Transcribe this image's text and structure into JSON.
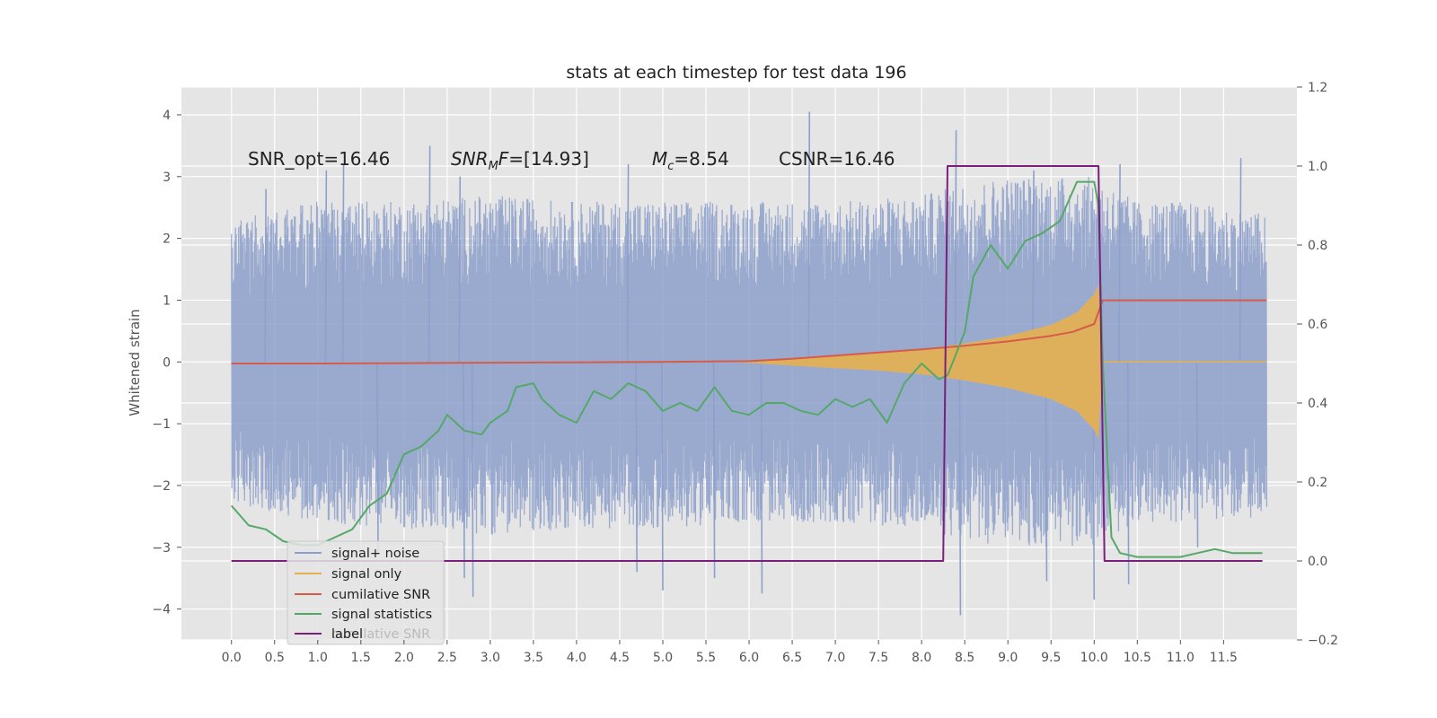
{
  "chart_data": {
    "type": "line",
    "title": "stats at each timestep for test data 196",
    "xlabel": "",
    "ylabel": "Whitened strain",
    "y2label": "",
    "xlim": [
      -0.58,
      12.35
    ],
    "ylim": [
      -4.5,
      4.45
    ],
    "y2lim": [
      -0.2,
      1.2
    ],
    "x_ticks": [
      0.0,
      0.5,
      1.0,
      1.5,
      2.0,
      2.5,
      3.0,
      3.5,
      4.0,
      4.5,
      5.0,
      5.5,
      6.0,
      6.5,
      7.0,
      7.5,
      8.0,
      8.5,
      9.0,
      9.5,
      10.0,
      10.5,
      11.0,
      11.5
    ],
    "x_tick_labels": [
      "0.0",
      "0.5",
      "1.0",
      "1.5",
      "2.0",
      "2.5",
      "3.0",
      "3.5",
      "4.0",
      "4.5",
      "5.0",
      "5.5",
      "6.0",
      "6.5",
      "7.0",
      "7.5",
      "8.0",
      "8.5",
      "9.0",
      "9.5",
      "10.0",
      "10.5",
      "11.0",
      "11.5"
    ],
    "y_ticks": [
      4,
      3,
      2,
      1,
      0,
      -1,
      -2,
      -3,
      -4
    ],
    "y_tick_labels": [
      "4",
      "3",
      "2",
      "1",
      "0",
      "−1",
      "−2",
      "−3",
      "−4"
    ],
    "y2_ticks": [
      1.2,
      1.0,
      0.8,
      0.6,
      0.4,
      0.2,
      0.0,
      -0.2
    ],
    "y2_tick_labels": [
      "1.2",
      "1.0",
      "0.8",
      "0.6",
      "0.4",
      "0.2",
      "0.0",
      "−0.2"
    ],
    "grid": true,
    "legend_position": "lower-left",
    "annotations": {
      "snr_opt": "SNR_opt=16.46",
      "snr_mf_prefix": "SNR",
      "snr_mf_sub": "M",
      "snr_mf_mid": "F",
      "snr_mf_value": "=[14.93]",
      "mc_prefix": "M",
      "mc_sub": "c",
      "mc_value": "=8.54",
      "csnr": "CSNR=16.46"
    },
    "series": [
      {
        "name": "signal+ noise",
        "axis": "left",
        "color": "#8DA0CB",
        "x_range": [
          0.0,
          12.0
        ],
        "envelope_x": [
          0.0,
          1.0,
          2.0,
          3.0,
          4.0,
          5.0,
          6.0,
          7.0,
          8.0,
          8.5,
          9.0,
          9.5,
          10.0,
          10.5,
          11.0,
          12.0
        ],
        "envelope_upper": [
          2.3,
          2.6,
          2.6,
          2.7,
          2.6,
          2.6,
          2.6,
          2.6,
          2.7,
          2.9,
          3.0,
          3.0,
          3.0,
          2.6,
          2.6,
          2.4
        ],
        "envelope_lower": [
          -2.3,
          -2.6,
          -2.7,
          -2.8,
          -2.7,
          -2.7,
          -2.6,
          -2.6,
          -2.7,
          -2.9,
          -3.0,
          -3.0,
          -3.0,
          -2.6,
          -2.6,
          -2.5
        ],
        "peaks": [
          [
            0.4,
            2.8
          ],
          [
            1.1,
            3.1
          ],
          [
            1.3,
            3.2
          ],
          [
            2.3,
            3.5
          ],
          [
            2.65,
            3.0
          ],
          [
            4.6,
            3.2
          ],
          [
            6.7,
            4.05
          ],
          [
            8.4,
            3.75
          ],
          [
            9.3,
            3.1
          ],
          [
            10.3,
            3.2
          ],
          [
            11.7,
            3.3
          ],
          [
            1.7,
            -3.1
          ],
          [
            2.7,
            -3.5
          ],
          [
            2.8,
            -3.8
          ],
          [
            4.7,
            -3.4
          ],
          [
            5.0,
            -3.7
          ],
          [
            5.6,
            -3.5
          ],
          [
            6.15,
            -3.75
          ],
          [
            8.45,
            -4.1
          ],
          [
            9.45,
            -3.55
          ],
          [
            10.0,
            -3.85
          ],
          [
            10.4,
            -3.6
          ],
          [
            11.2,
            -3.0
          ]
        ]
      },
      {
        "name": "signal only",
        "axis": "left",
        "color": "#E5B04F",
        "x": [
          0.0,
          5.8,
          6.5,
          7.0,
          7.5,
          8.0,
          8.5,
          9.0,
          9.5,
          9.8,
          10.0,
          10.05,
          10.1,
          12.0
        ],
        "envelope": [
          0.0,
          0.0,
          0.06,
          0.1,
          0.14,
          0.2,
          0.3,
          0.42,
          0.6,
          0.8,
          1.1,
          1.25,
          0.0,
          0.0
        ]
      },
      {
        "name": "cumilative SNR",
        "axis": "right",
        "color": "#D75B4A",
        "x": [
          0.0,
          1.0,
          2.0,
          3.0,
          4.0,
          5.0,
          5.5,
          6.0,
          6.5,
          7.0,
          7.5,
          8.0,
          8.5,
          9.0,
          9.5,
          9.75,
          10.0,
          10.1,
          10.5,
          11.0,
          11.5,
          12.0
        ],
        "values": [
          0.5,
          0.5,
          0.501,
          0.502,
          0.503,
          0.504,
          0.505,
          0.506,
          0.512,
          0.52,
          0.528,
          0.536,
          0.545,
          0.556,
          0.57,
          0.58,
          0.6,
          0.66,
          0.66,
          0.66,
          0.66,
          0.66
        ]
      },
      {
        "name": "signal statistics",
        "axis": "right",
        "color": "#55A868",
        "x": [
          0.0,
          0.2,
          0.4,
          0.6,
          0.8,
          1.0,
          1.2,
          1.4,
          1.6,
          1.8,
          2.0,
          2.2,
          2.4,
          2.5,
          2.7,
          2.9,
          3.0,
          3.2,
          3.3,
          3.5,
          3.6,
          3.8,
          4.0,
          4.2,
          4.4,
          4.6,
          4.8,
          5.0,
          5.2,
          5.4,
          5.6,
          5.8,
          6.0,
          6.2,
          6.4,
          6.6,
          6.8,
          7.0,
          7.2,
          7.4,
          7.6,
          7.8,
          8.0,
          8.2,
          8.3,
          8.5,
          8.6,
          8.8,
          9.0,
          9.2,
          9.4,
          9.6,
          9.8,
          10.0,
          10.05,
          10.1,
          10.2,
          10.3,
          10.5,
          10.8,
          11.0,
          11.2,
          11.4,
          11.6,
          11.8,
          11.95
        ],
        "values": [
          0.14,
          0.09,
          0.08,
          0.05,
          0.04,
          0.04,
          0.06,
          0.08,
          0.14,
          0.17,
          0.27,
          0.29,
          0.33,
          0.37,
          0.33,
          0.32,
          0.35,
          0.38,
          0.44,
          0.45,
          0.41,
          0.37,
          0.35,
          0.43,
          0.41,
          0.45,
          0.43,
          0.38,
          0.4,
          0.38,
          0.44,
          0.38,
          0.37,
          0.4,
          0.4,
          0.38,
          0.37,
          0.41,
          0.39,
          0.41,
          0.35,
          0.45,
          0.5,
          0.46,
          0.47,
          0.58,
          0.72,
          0.8,
          0.74,
          0.81,
          0.83,
          0.86,
          0.96,
          0.96,
          0.9,
          0.5,
          0.06,
          0.02,
          0.01,
          0.01,
          0.01,
          0.02,
          0.03,
          0.02,
          0.02,
          0.02
        ]
      },
      {
        "name": "label",
        "axis": "right",
        "color": "#7B1F7B",
        "x": [
          0.0,
          8.25,
          8.3,
          10.05,
          10.12,
          11.95
        ],
        "values": [
          0.0,
          0.0,
          1.0,
          1.0,
          0.0,
          0.0
        ]
      }
    ],
    "legend_ghost_text": "cumilative SNR"
  },
  "colors": {
    "axes_bg": "#E5E5E5",
    "grid": "#FFFFFF",
    "noise": "#8DA0CB",
    "signal": "#E5B04F",
    "cum_snr": "#D75B4A",
    "stats": "#55A868",
    "label": "#7B1F7B"
  }
}
